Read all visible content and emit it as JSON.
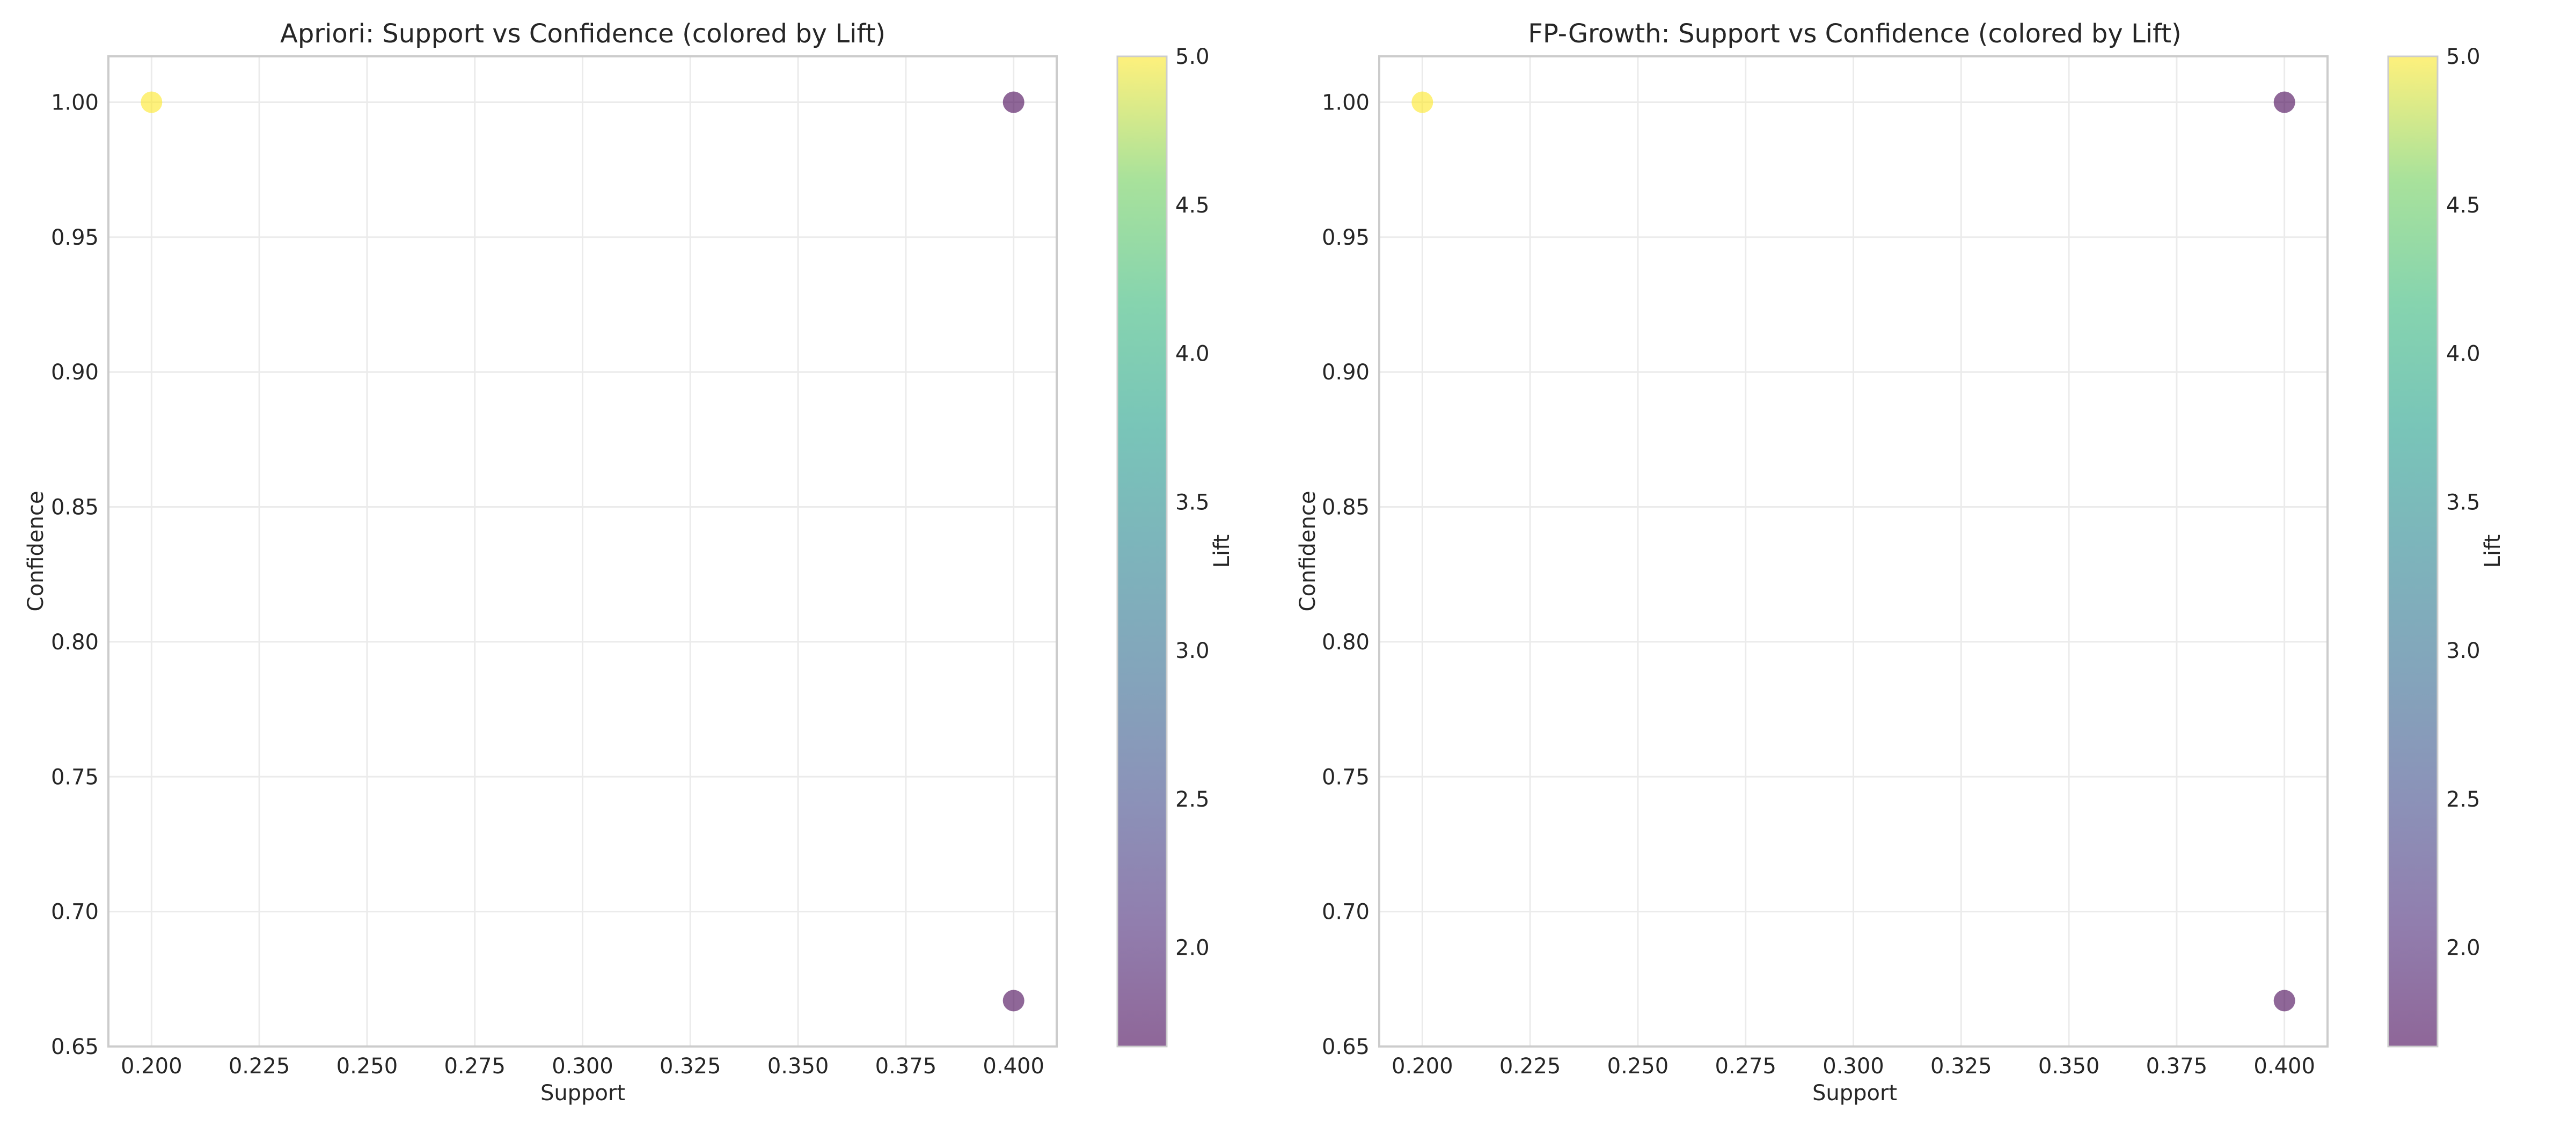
{
  "colors": {
    "viridis_low": "#440154",
    "viridis_high": "#fde725",
    "grid": "#ebebeb",
    "frame": "#cccccc",
    "text": "#262626"
  },
  "chart_data": [
    {
      "type": "scatter",
      "title": "Apriori: Support vs Confidence (colored by Lift)",
      "xlabel": "Support",
      "ylabel": "Confidence",
      "xlim": [
        0.19,
        0.41
      ],
      "ylim": [
        0.65,
        1.017
      ],
      "xticks": [
        0.2,
        0.225,
        0.25,
        0.275,
        0.3,
        0.325,
        0.35,
        0.375,
        0.4
      ],
      "xtick_labels": [
        "0.200",
        "0.225",
        "0.250",
        "0.275",
        "0.300",
        "0.325",
        "0.350",
        "0.375",
        "0.400"
      ],
      "yticks": [
        0.65,
        0.7,
        0.75,
        0.8,
        0.85,
        0.9,
        0.95,
        1.0
      ],
      "ytick_labels": [
        "0.65",
        "0.70",
        "0.75",
        "0.80",
        "0.85",
        "0.90",
        "0.95",
        "1.00"
      ],
      "grid": true,
      "colormap": "viridis",
      "point_alpha": 0.6,
      "colorbar": {
        "label": "Lift",
        "range": [
          1.667,
          5.0
        ],
        "ticks": [
          2.0,
          2.5,
          3.0,
          3.5,
          4.0,
          4.5,
          5.0
        ],
        "tick_labels": [
          "2.0",
          "2.5",
          "3.0",
          "3.5",
          "4.0",
          "4.5",
          "5.0"
        ]
      },
      "points": [
        {
          "x": 0.2,
          "y": 1.0,
          "lift": 5.0
        },
        {
          "x": 0.4,
          "y": 1.0,
          "lift": 1.667
        },
        {
          "x": 0.4,
          "y": 0.667,
          "lift": 1.667
        }
      ]
    },
    {
      "type": "scatter",
      "title": "FP-Growth: Support vs Confidence (colored by Lift)",
      "xlabel": "Support",
      "ylabel": "Confidence",
      "xlim": [
        0.19,
        0.41
      ],
      "ylim": [
        0.65,
        1.017
      ],
      "xticks": [
        0.2,
        0.225,
        0.25,
        0.275,
        0.3,
        0.325,
        0.35,
        0.375,
        0.4
      ],
      "xtick_labels": [
        "0.200",
        "0.225",
        "0.250",
        "0.275",
        "0.300",
        "0.325",
        "0.350",
        "0.375",
        "0.400"
      ],
      "yticks": [
        0.65,
        0.7,
        0.75,
        0.8,
        0.85,
        0.9,
        0.95,
        1.0
      ],
      "ytick_labels": [
        "0.65",
        "0.70",
        "0.75",
        "0.80",
        "0.85",
        "0.90",
        "0.95",
        "1.00"
      ],
      "grid": true,
      "colormap": "viridis",
      "point_alpha": 0.6,
      "colorbar": {
        "label": "Lift",
        "range": [
          1.667,
          5.0
        ],
        "ticks": [
          2.0,
          2.5,
          3.0,
          3.5,
          4.0,
          4.5,
          5.0
        ],
        "tick_labels": [
          "2.0",
          "2.5",
          "3.0",
          "3.5",
          "4.0",
          "4.5",
          "5.0"
        ]
      },
      "points": [
        {
          "x": 0.2,
          "y": 1.0,
          "lift": 5.0
        },
        {
          "x": 0.4,
          "y": 1.0,
          "lift": 1.667
        },
        {
          "x": 0.4,
          "y": 0.667,
          "lift": 1.667
        }
      ]
    }
  ]
}
